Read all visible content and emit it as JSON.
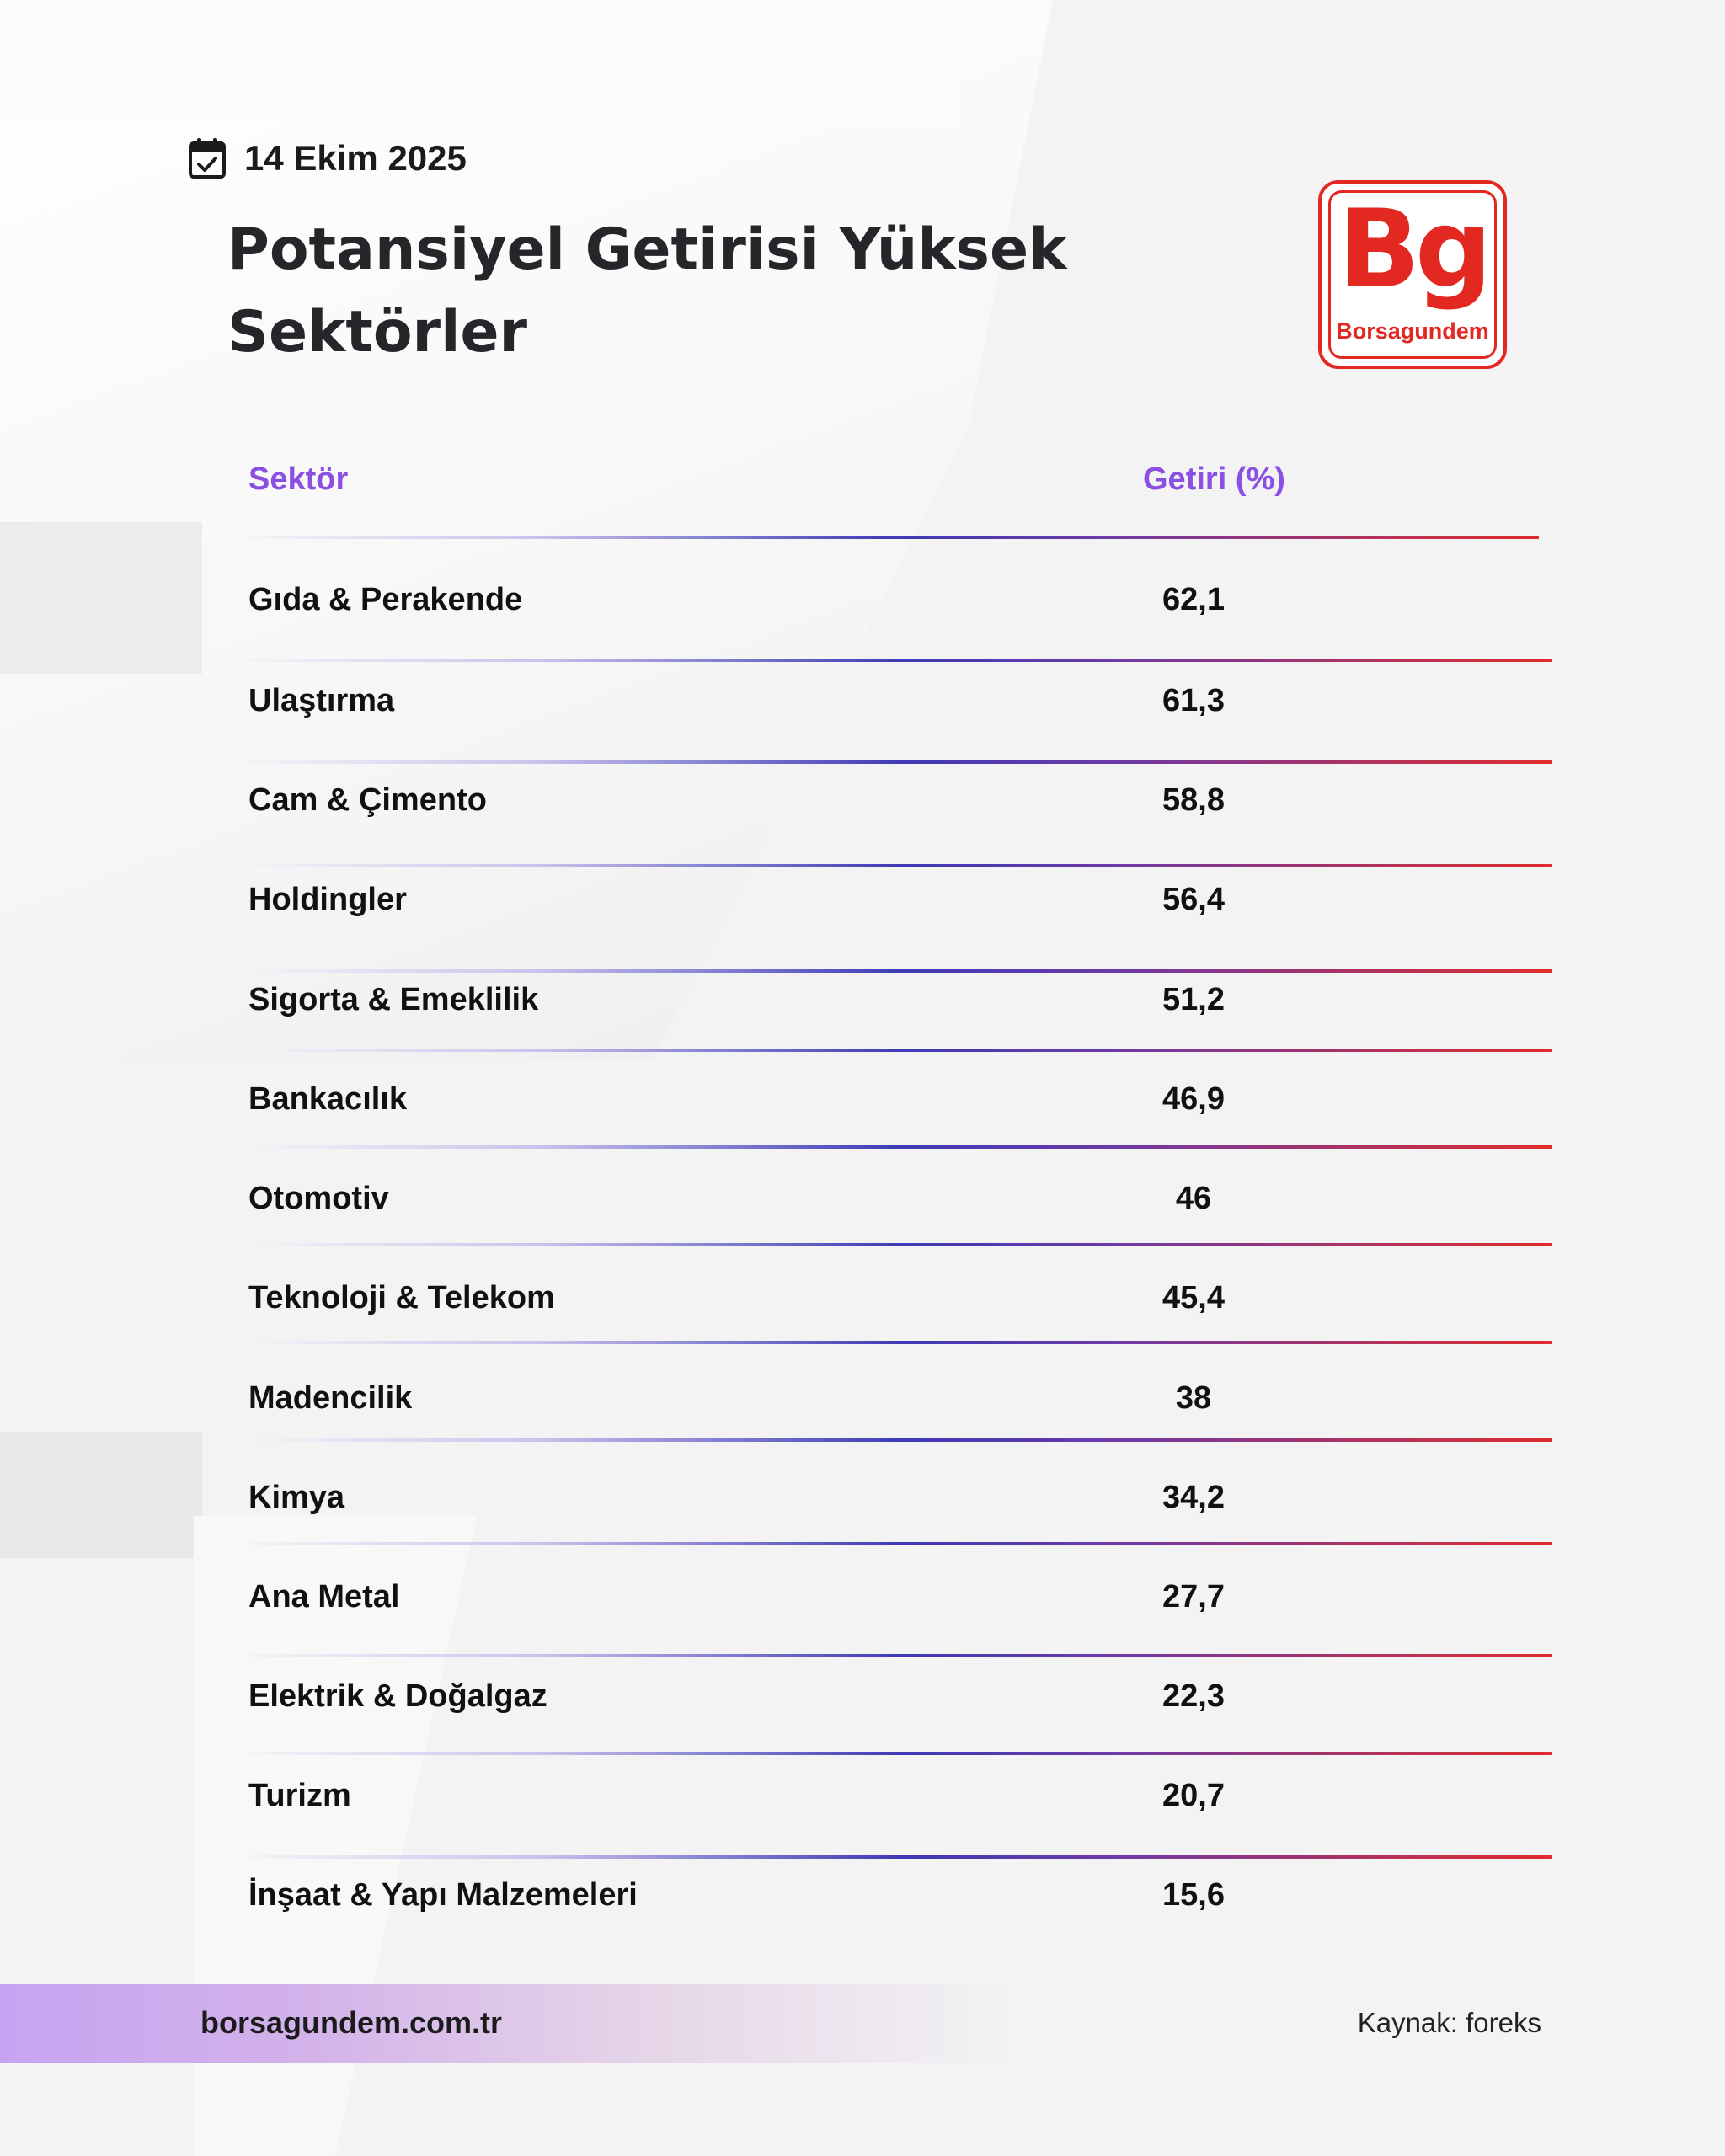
{
  "date": "14 Ekim 2025",
  "title": "Potansiyel Getirisi Yüksek Sektörler",
  "logo": {
    "mark": "Bg",
    "wordmark": "Borsagundem",
    "color": "#e32822"
  },
  "table": {
    "headers": {
      "sector": "Sektör",
      "return": "Getiri (%)"
    },
    "rows": [
      {
        "sector": "Gıda & Perakende",
        "value": "62,1"
      },
      {
        "sector": "Ulaştırma",
        "value": "61,3"
      },
      {
        "sector": "Cam & Çimento",
        "value": "58,8"
      },
      {
        "sector": "Holdingler",
        "value": "56,4"
      },
      {
        "sector": "Sigorta & Emeklilik",
        "value": "51,2"
      },
      {
        "sector": "Bankacılık",
        "value": "46,9"
      },
      {
        "sector": "Otomotiv",
        "value": "46"
      },
      {
        "sector": "Teknoloji & Telekom",
        "value": "45,4"
      },
      {
        "sector": "Madencilik",
        "value": "38"
      },
      {
        "sector": "Kimya",
        "value": "34,2"
      },
      {
        "sector": "Ana Metal",
        "value": "27,7"
      },
      {
        "sector": "Elektrik & Doğalgaz",
        "value": "22,3"
      },
      {
        "sector": "Turizm",
        "value": "20,7"
      },
      {
        "sector": "İnşaat & Yapı Malzemeleri",
        "value": "15,6"
      }
    ]
  },
  "footer": {
    "site": "borsagundem.com.tr",
    "source": "Kaynak: foreks"
  },
  "colors": {
    "header_text": "#8b4fe3",
    "accent_red": "#e32822",
    "rule_blue": "#3e3ab5"
  }
}
